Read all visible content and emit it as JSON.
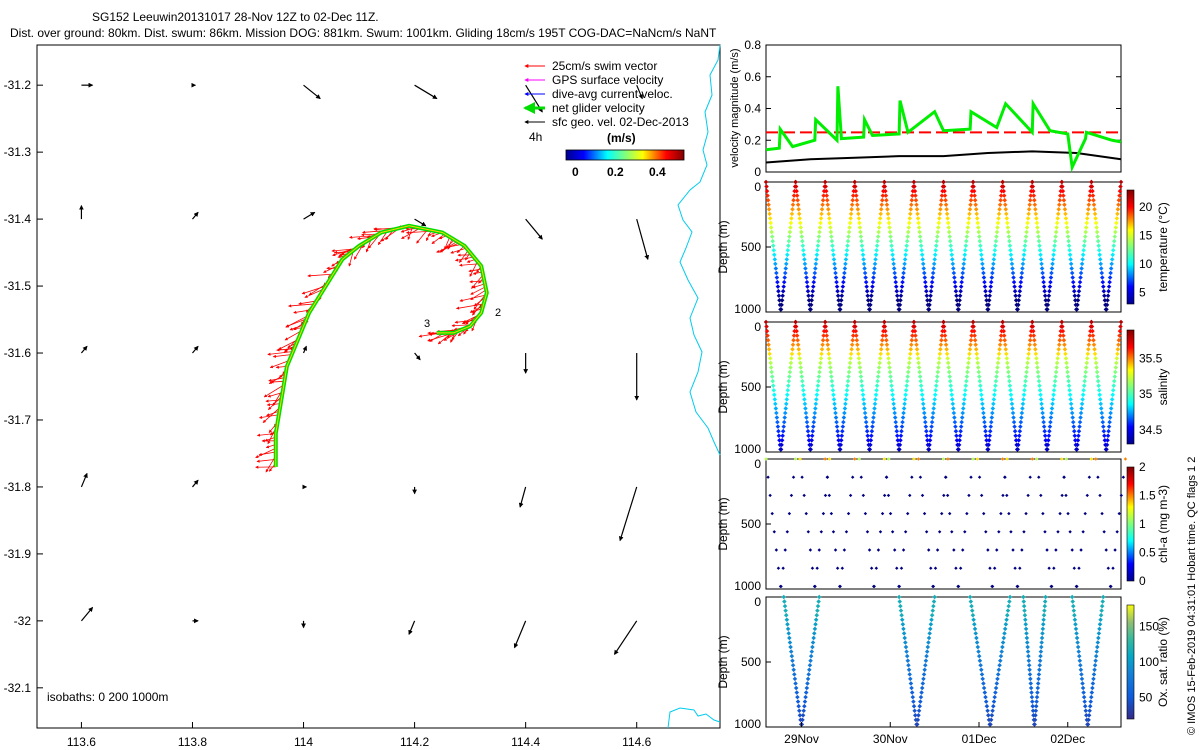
{
  "header": {
    "title_line1": "SG152 Leeuwin20131017 28-Nov 12Z to 02-Dec 11Z.",
    "title_line2": "Dist. over ground: 80km. Dist. swum: 86km. Mission DOG: 881km. Swum: 1001km. Gliding 18cm/s 195T COG-DAC=NaNcm/s NaNT"
  },
  "credit": "© IMOS 15-Feb-2019 04:31:01 Hobart time. QC flags 1  2",
  "colors": {
    "swim_vector": "#ff0000",
    "gps_velocity": "#ff00ff",
    "current_velocity": "#0000ff",
    "net_velocity": "#00dd00",
    "geostrophic": "#000000",
    "coast": "#00ccee"
  },
  "chart_data": [
    {
      "type": "scatter",
      "subtype": "map-quiver",
      "xlim": [
        113.52,
        114.75
      ],
      "ylim": [
        -32.16,
        -31.14
      ],
      "xticks": [
        "113.6",
        "113.8",
        "114",
        "114.2",
        "114.4",
        "114.6"
      ],
      "xtick_values": [
        113.6,
        113.8,
        114.0,
        114.2,
        114.4,
        114.6
      ],
      "yticks": [
        "-31.2",
        "-31.3",
        "-31.4",
        "-31.5",
        "-31.6",
        "-31.7",
        "-31.8",
        "-31.9",
        "-32",
        "-32.1"
      ],
      "ytick_values": [
        -31.2,
        -31.3,
        -31.4,
        -31.5,
        -31.6,
        -31.7,
        -31.8,
        -31.9,
        -32.0,
        -32.1
      ],
      "legend": {
        "position": "top-right",
        "entries": [
          "25cm/s swim vector",
          "GPS surface velocity",
          "dive-avg current veloc.",
          "net glider velocity",
          "sfc geo. vel. 02-Dec-2013"
        ],
        "interval_label": "4h",
        "colorbar_title": "(m/s)",
        "colorbar_ticks": [
          "0",
          "0.2",
          "0.4"
        ]
      },
      "isobaths_label": "isobaths: 0   200   1000m",
      "annotations": [
        "3",
        "2"
      ],
      "track": [
        [
          113.95,
          -31.77
        ],
        [
          113.95,
          -31.72
        ],
        [
          113.96,
          -31.67
        ],
        [
          113.97,
          -31.62
        ],
        [
          113.99,
          -31.58
        ],
        [
          114.01,
          -31.54
        ],
        [
          114.04,
          -31.5
        ],
        [
          114.07,
          -31.46
        ],
        [
          114.1,
          -31.44
        ],
        [
          114.14,
          -31.42
        ],
        [
          114.19,
          -31.41
        ],
        [
          114.25,
          -31.42
        ],
        [
          114.29,
          -31.44
        ],
        [
          114.32,
          -31.47
        ],
        [
          114.33,
          -31.51
        ],
        [
          114.32,
          -31.54
        ],
        [
          114.3,
          -31.56
        ],
        [
          114.27,
          -31.57
        ],
        [
          114.24,
          -31.57
        ]
      ],
      "geo_vectors": [
        [
          113.6,
          -31.2,
          0.02,
          0.0
        ],
        [
          113.8,
          -31.2,
          0.005,
          0.0
        ],
        [
          114.0,
          -31.2,
          0.03,
          -0.02
        ],
        [
          114.2,
          -31.2,
          0.04,
          -0.02
        ],
        [
          114.4,
          -31.2,
          0.03,
          -0.04
        ],
        [
          114.6,
          -31.2,
          0.01,
          -0.02
        ],
        [
          113.6,
          -31.4,
          0.0,
          0.02
        ],
        [
          113.8,
          -31.4,
          0.01,
          0.01
        ],
        [
          114.0,
          -31.4,
          0.02,
          0.01
        ],
        [
          114.2,
          -31.4,
          0.02,
          -0.01
        ],
        [
          114.4,
          -31.4,
          0.03,
          -0.03
        ],
        [
          114.6,
          -31.4,
          0.02,
          -0.06
        ],
        [
          113.6,
          -31.6,
          0.01,
          0.01
        ],
        [
          113.8,
          -31.6,
          0.01,
          0.01
        ],
        [
          114.0,
          -31.6,
          0.005,
          0.01
        ],
        [
          114.2,
          -31.6,
          0.01,
          -0.01
        ],
        [
          114.4,
          -31.6,
          0.0,
          -0.03
        ],
        [
          114.6,
          -31.6,
          0.0,
          -0.07
        ],
        [
          113.6,
          -31.8,
          0.01,
          0.02
        ],
        [
          113.8,
          -31.8,
          0.01,
          0.01
        ],
        [
          114.0,
          -31.8,
          0.005,
          0.0
        ],
        [
          114.2,
          -31.8,
          0.0,
          -0.01
        ],
        [
          114.4,
          -31.8,
          -0.01,
          -0.03
        ],
        [
          114.6,
          -31.8,
          -0.03,
          -0.08
        ],
        [
          113.6,
          -32.0,
          0.02,
          0.02
        ],
        [
          113.8,
          -32.0,
          0.01,
          0.0
        ],
        [
          114.0,
          -32.0,
          0.0,
          -0.01
        ],
        [
          114.2,
          -32.0,
          -0.01,
          -0.02
        ],
        [
          114.4,
          -32.0,
          -0.02,
          -0.04
        ],
        [
          114.6,
          -32.0,
          -0.04,
          -0.05
        ]
      ]
    },
    {
      "type": "line",
      "ylabel": "velocity magnitude (m/s)",
      "ylim": [
        0,
        0.8
      ],
      "yticks": [
        "0",
        "0.2",
        "0.4",
        "0.6",
        "0.8"
      ],
      "x_range_days": [
        0,
        4
      ],
      "series": [
        {
          "values": [
            0.25,
            0.25
          ],
          "color": "#ff0000",
          "style": "dashed"
        },
        {
          "x": [
            0,
            0.5,
            1.0,
            1.5,
            2.0,
            2.5,
            3.0,
            3.5,
            4.0
          ],
          "values": [
            0.06,
            0.08,
            0.09,
            0.1,
            0.1,
            0.12,
            0.13,
            0.12,
            0.08
          ],
          "color": "#000000"
        },
        {
          "x": [
            0,
            0.15,
            0.16,
            0.3,
            0.55,
            0.56,
            0.8,
            0.81,
            0.85,
            1.1,
            1.11,
            1.2,
            1.5,
            1.51,
            1.6,
            1.9,
            2.0,
            2.3,
            2.31,
            2.6,
            2.7,
            3.0,
            3.01,
            3.2,
            3.4,
            3.45,
            3.6,
            3.61,
            3.9,
            4.0
          ],
          "values": [
            0.14,
            0.15,
            0.27,
            0.16,
            0.2,
            0.33,
            0.2,
            0.54,
            0.21,
            0.22,
            0.33,
            0.23,
            0.24,
            0.45,
            0.25,
            0.38,
            0.26,
            0.27,
            0.38,
            0.28,
            0.43,
            0.25,
            0.43,
            0.26,
            0.24,
            0.03,
            0.21,
            0.25,
            0.2,
            0.19
          ],
          "color": "#00ee00"
        }
      ]
    },
    {
      "type": "scatter",
      "subtype": "section",
      "ylabel": "Depth (m)",
      "yticks": [
        "0",
        "500",
        "1000"
      ],
      "ylim": [
        1000,
        0
      ],
      "colorbar_label": "temperature (°C)",
      "colorbar_ticks": [
        "5",
        "10",
        "15",
        "20"
      ],
      "clim": [
        3,
        23
      ],
      "profiles": 24,
      "max_depth": 1000
    },
    {
      "type": "scatter",
      "subtype": "section",
      "ylabel": "Depth (m)",
      "yticks": [
        "0",
        "500",
        "1000"
      ],
      "ylim": [
        1000,
        0
      ],
      "colorbar_label": "salinity",
      "colorbar_ticks": [
        "34.5",
        "35",
        "35.5"
      ],
      "clim": [
        34.3,
        35.9
      ],
      "profiles": 24,
      "max_depth": 1000
    },
    {
      "type": "scatter",
      "subtype": "section",
      "ylabel": "Depth (m)",
      "yticks": [
        "0",
        "500",
        "1000"
      ],
      "ylim": [
        1000,
        0
      ],
      "colorbar_label": "chl-a (mg m-3)",
      "colorbar_ticks": [
        "0",
        "0.5",
        "1",
        "1.5",
        "2"
      ],
      "clim": [
        0,
        2
      ],
      "profiles": 24,
      "max_depth": 1000
    },
    {
      "type": "scatter",
      "subtype": "section",
      "ylabel": "Depth (m)",
      "yticks": [
        "0",
        "500",
        "1000"
      ],
      "ylim": [
        1000,
        0
      ],
      "colorbar_label": "Ox. sat. ratio (%)",
      "colorbar_ticks": [
        "50",
        "100",
        "150"
      ],
      "clim": [
        20,
        180
      ],
      "xticks": [
        "29Nov",
        "30Nov",
        "01Dec",
        "02Dec"
      ],
      "profile_groups": [
        [
          0.2,
          0.6
        ],
        [
          1.5,
          1.9
        ],
        [
          2.3,
          2.75
        ],
        [
          2.9,
          3.15
        ],
        [
          3.45,
          3.8
        ]
      ],
      "max_depth": 1000
    }
  ]
}
